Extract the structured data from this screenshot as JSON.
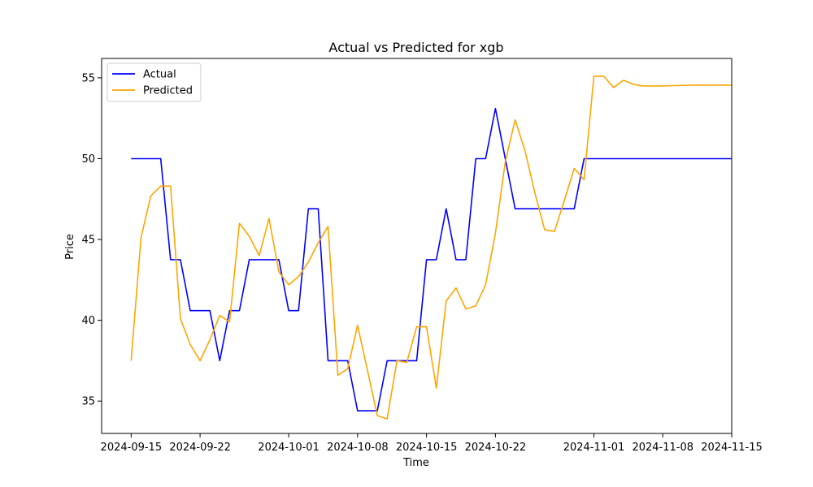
{
  "chart_data": {
    "type": "line",
    "title": "Actual vs Predicted for xgb",
    "xlabel": "Time",
    "ylabel": "Price",
    "xlim": [
      "2024-09-12",
      "2024-11-15"
    ],
    "ylim": [
      33.0,
      56.2
    ],
    "grid": false,
    "legend_position": "top-left",
    "x_ticks": [
      "2024-09-15",
      "2024-09-22",
      "2024-10-01",
      "2024-10-08",
      "2024-10-15",
      "2024-10-22",
      "2024-11-01",
      "2024-11-08",
      "2024-11-15"
    ],
    "y_ticks": [
      35,
      40,
      45,
      50,
      55
    ],
    "series": [
      {
        "name": "Actual",
        "color": "#0000ff",
        "points": [
          [
            "2024-09-15",
            50.0
          ],
          [
            "2024-09-18",
            50.0
          ],
          [
            "2024-09-19",
            43.75
          ],
          [
            "2024-09-20",
            43.75
          ],
          [
            "2024-09-21",
            40.6
          ],
          [
            "2024-09-23",
            40.6
          ],
          [
            "2024-09-24",
            37.5
          ],
          [
            "2024-09-25",
            40.6
          ],
          [
            "2024-09-26",
            40.6
          ],
          [
            "2024-09-27",
            43.75
          ],
          [
            "2024-09-30",
            43.75
          ],
          [
            "2024-10-01",
            40.6
          ],
          [
            "2024-10-02",
            40.6
          ],
          [
            "2024-10-03",
            46.9
          ],
          [
            "2024-10-04",
            46.9
          ],
          [
            "2024-10-05",
            37.5
          ],
          [
            "2024-10-07",
            37.5
          ],
          [
            "2024-10-08",
            34.4
          ],
          [
            "2024-10-10",
            34.4
          ],
          [
            "2024-10-11",
            37.5
          ],
          [
            "2024-10-14",
            37.5
          ],
          [
            "2024-10-15",
            43.75
          ],
          [
            "2024-10-16",
            43.75
          ],
          [
            "2024-10-17",
            46.9
          ],
          [
            "2024-10-18",
            43.75
          ],
          [
            "2024-10-19",
            43.75
          ],
          [
            "2024-10-20",
            50.0
          ],
          [
            "2024-10-21",
            50.0
          ],
          [
            "2024-10-22",
            53.1
          ],
          [
            "2024-10-24",
            46.9
          ],
          [
            "2024-10-30",
            46.9
          ],
          [
            "2024-10-31",
            50.0
          ],
          [
            "2024-11-15",
            50.0
          ]
        ]
      },
      {
        "name": "Predicted",
        "color": "#ffa500",
        "points": [
          [
            "2024-09-15",
            37.5
          ],
          [
            "2024-09-16",
            45.1
          ],
          [
            "2024-09-17",
            47.7
          ],
          [
            "2024-09-18",
            48.3
          ],
          [
            "2024-09-19",
            48.3
          ],
          [
            "2024-09-20",
            40.1
          ],
          [
            "2024-09-21",
            38.5
          ],
          [
            "2024-09-22",
            37.5
          ],
          [
            "2024-09-23",
            38.8
          ],
          [
            "2024-09-24",
            40.3
          ],
          [
            "2024-09-25",
            39.9
          ],
          [
            "2024-09-26",
            46.0
          ],
          [
            "2024-09-27",
            45.2
          ],
          [
            "2024-09-28",
            44.0
          ],
          [
            "2024-09-29",
            46.3
          ],
          [
            "2024-09-30",
            43.0
          ],
          [
            "2024-10-01",
            42.2
          ],
          [
            "2024-10-02",
            42.7
          ],
          [
            "2024-10-03",
            43.6
          ],
          [
            "2024-10-04",
            44.8
          ],
          [
            "2024-10-05",
            45.8
          ],
          [
            "2024-10-06",
            36.6
          ],
          [
            "2024-10-07",
            37.0
          ],
          [
            "2024-10-08",
            39.7
          ],
          [
            "2024-10-09",
            36.9
          ],
          [
            "2024-10-10",
            34.1
          ],
          [
            "2024-10-11",
            33.9
          ],
          [
            "2024-10-12",
            37.5
          ],
          [
            "2024-10-13",
            37.4
          ],
          [
            "2024-10-14",
            39.6
          ],
          [
            "2024-10-15",
            39.6
          ],
          [
            "2024-10-16",
            35.8
          ],
          [
            "2024-10-17",
            41.2
          ],
          [
            "2024-10-18",
            42.0
          ],
          [
            "2024-10-19",
            40.7
          ],
          [
            "2024-10-20",
            40.9
          ],
          [
            "2024-10-21",
            42.2
          ],
          [
            "2024-10-22",
            45.4
          ],
          [
            "2024-10-23",
            49.8
          ],
          [
            "2024-10-24",
            52.4
          ],
          [
            "2024-10-25",
            50.5
          ],
          [
            "2024-10-26",
            47.9
          ],
          [
            "2024-10-27",
            45.6
          ],
          [
            "2024-10-28",
            45.5
          ],
          [
            "2024-10-29",
            47.4
          ],
          [
            "2024-10-30",
            49.4
          ],
          [
            "2024-10-31",
            48.7
          ],
          [
            "2024-11-01",
            55.1
          ],
          [
            "2024-11-02",
            55.1
          ],
          [
            "2024-11-03",
            54.4
          ],
          [
            "2024-11-04",
            54.85
          ],
          [
            "2024-11-05",
            54.6
          ],
          [
            "2024-11-06",
            54.5
          ],
          [
            "2024-11-08",
            54.5
          ],
          [
            "2024-11-09",
            54.52
          ],
          [
            "2024-11-11",
            54.55
          ],
          [
            "2024-11-15",
            54.55
          ]
        ]
      }
    ]
  }
}
